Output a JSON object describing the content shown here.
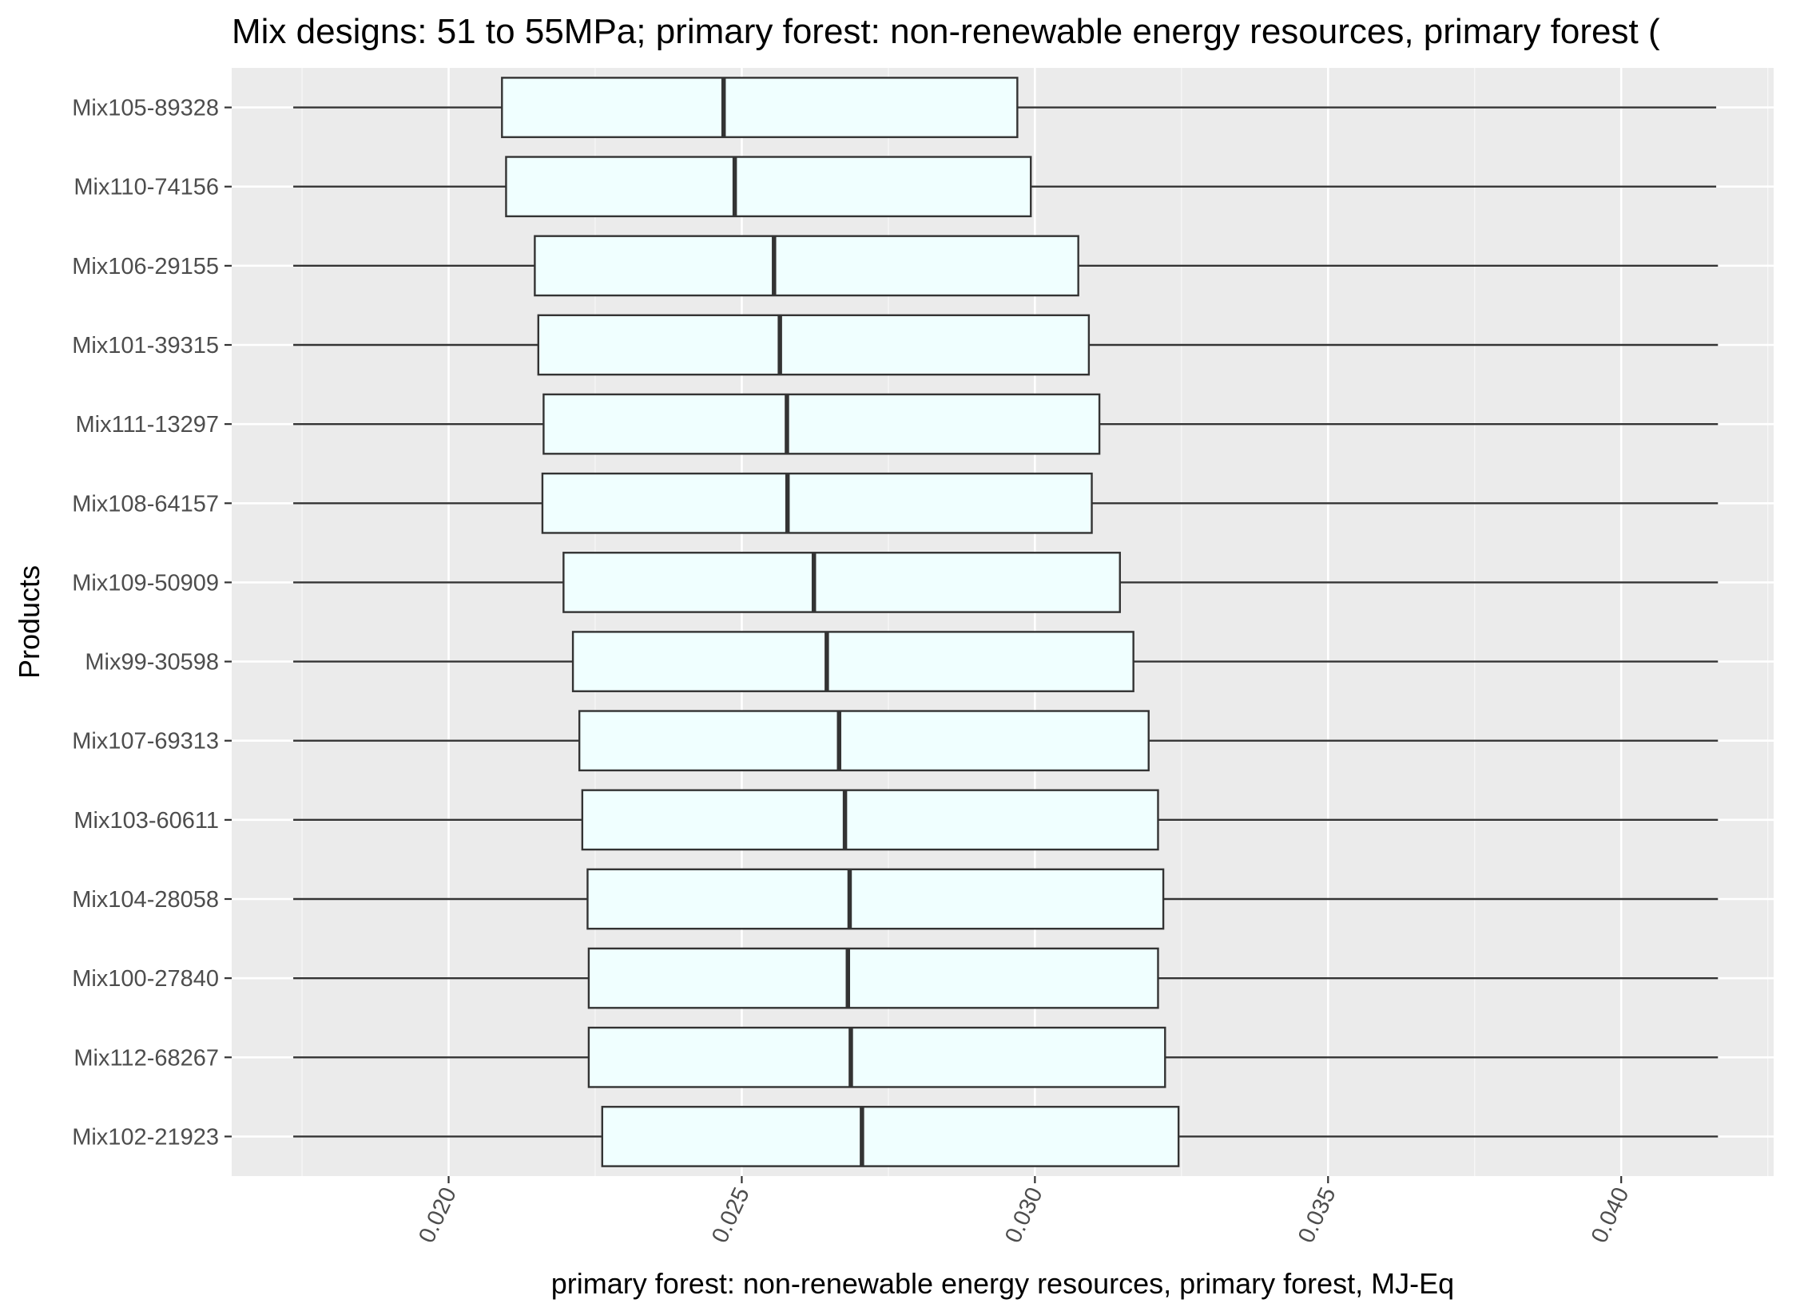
{
  "chart_data": {
    "type": "box",
    "orientation": "horizontal",
    "title": "Mix designs: 51 to 55MPa; primary forest: non-renewable energy resources, primary forest (",
    "xlabel": "primary forest: non-renewable energy resources, primary forest, MJ-Eq",
    "ylabel": "Products",
    "xlim": [
      0.0163,
      0.0426
    ],
    "x_ticks": [
      0.02,
      0.025,
      0.03,
      0.035,
      0.04
    ],
    "x_tick_labels": [
      "0.020",
      "0.025",
      "0.030",
      "0.035",
      "0.040"
    ],
    "grid": true,
    "colors": {
      "panel": "#ebebeb",
      "grid": "#ffffff",
      "box_fill": "#f0ffff",
      "line": "#333333"
    },
    "series": [
      {
        "label": "Mix105-89328",
        "min": 0.01735,
        "q1": 0.02091,
        "median": 0.02469,
        "q3": 0.0297,
        "max": 0.04162
      },
      {
        "label": "Mix110-74156",
        "min": 0.01735,
        "q1": 0.02098,
        "median": 0.02488,
        "q3": 0.02993,
        "max": 0.04162
      },
      {
        "label": "Mix106-29155",
        "min": 0.01735,
        "q1": 0.02147,
        "median": 0.02555,
        "q3": 0.03074,
        "max": 0.04165
      },
      {
        "label": "Mix101-39315",
        "min": 0.01735,
        "q1": 0.02153,
        "median": 0.02565,
        "q3": 0.03092,
        "max": 0.04165
      },
      {
        "label": "Mix111-13297",
        "min": 0.01735,
        "q1": 0.02162,
        "median": 0.02577,
        "q3": 0.0311,
        "max": 0.04165
      },
      {
        "label": "Mix108-64157",
        "min": 0.01735,
        "q1": 0.0216,
        "median": 0.02578,
        "q3": 0.03097,
        "max": 0.04165
      },
      {
        "label": "Mix109-50909",
        "min": 0.01735,
        "q1": 0.02196,
        "median": 0.02623,
        "q3": 0.03145,
        "max": 0.04165
      },
      {
        "label": "Mix99-30598",
        "min": 0.01735,
        "q1": 0.02212,
        "median": 0.02645,
        "q3": 0.03168,
        "max": 0.04165
      },
      {
        "label": "Mix107-69313",
        "min": 0.01735,
        "q1": 0.02223,
        "median": 0.02666,
        "q3": 0.03194,
        "max": 0.04165
      },
      {
        "label": "Mix103-60611",
        "min": 0.01735,
        "q1": 0.02228,
        "median": 0.02676,
        "q3": 0.0321,
        "max": 0.04165
      },
      {
        "label": "Mix104-28058",
        "min": 0.01735,
        "q1": 0.02237,
        "median": 0.02684,
        "q3": 0.03219,
        "max": 0.04165
      },
      {
        "label": "Mix100-27840",
        "min": 0.01735,
        "q1": 0.02239,
        "median": 0.02681,
        "q3": 0.0321,
        "max": 0.04165
      },
      {
        "label": "Mix112-68267",
        "min": 0.01735,
        "q1": 0.02239,
        "median": 0.02686,
        "q3": 0.03222,
        "max": 0.04165
      },
      {
        "label": "Mix102-21923",
        "min": 0.01735,
        "q1": 0.02262,
        "median": 0.02705,
        "q3": 0.03245,
        "max": 0.04165
      }
    ]
  }
}
